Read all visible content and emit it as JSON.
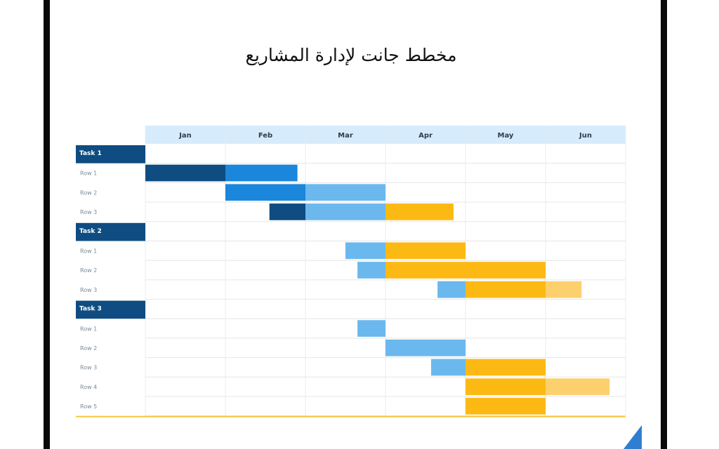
{
  "title": "مخطط جانت لإدارة المشاريع",
  "colors": {
    "header_bg": "#d6ebfb",
    "group_bg": "#0f4c81",
    "dark_blue": "#0f4c81",
    "mid_blue": "#1a86dc",
    "light_blue": "#6bb8ee",
    "gold": "#fdb913",
    "light_gold": "#fdd06e",
    "baseline": "#f5c842"
  },
  "chart_data": {
    "type": "gantt",
    "months": [
      "Jan",
      "Feb",
      "Mar",
      "Apr",
      "May",
      "Jun"
    ],
    "groups": [
      {
        "name": "Task 1",
        "rows": [
          {
            "label": "Row 1",
            "bars": [
              {
                "start": 0.0,
                "end": 1.0,
                "color": "dark_blue"
              },
              {
                "start": 1.0,
                "end": 1.9,
                "color": "mid_blue"
              }
            ]
          },
          {
            "label": "Row 2",
            "bars": [
              {
                "start": 1.0,
                "end": 2.0,
                "color": "mid_blue"
              },
              {
                "start": 2.0,
                "end": 3.0,
                "color": "light_blue"
              }
            ]
          },
          {
            "label": "Row 3",
            "bars": [
              {
                "start": 1.55,
                "end": 2.0,
                "color": "dark_blue"
              },
              {
                "start": 2.0,
                "end": 3.0,
                "color": "light_blue"
              },
              {
                "start": 3.0,
                "end": 3.85,
                "color": "gold"
              }
            ]
          }
        ]
      },
      {
        "name": "Task 2",
        "rows": [
          {
            "label": "Row 1",
            "bars": [
              {
                "start": 2.5,
                "end": 3.0,
                "color": "light_blue"
              },
              {
                "start": 3.0,
                "end": 4.0,
                "color": "gold"
              }
            ]
          },
          {
            "label": "Row 2",
            "bars": [
              {
                "start": 2.65,
                "end": 3.0,
                "color": "light_blue"
              },
              {
                "start": 3.0,
                "end": 5.0,
                "color": "gold"
              }
            ]
          },
          {
            "label": "Row 3",
            "bars": [
              {
                "start": 3.65,
                "end": 4.0,
                "color": "light_blue"
              },
              {
                "start": 4.0,
                "end": 5.0,
                "color": "gold"
              },
              {
                "start": 5.0,
                "end": 5.45,
                "color": "light_gold"
              }
            ]
          }
        ]
      },
      {
        "name": "Task 3",
        "rows": [
          {
            "label": "Row 1",
            "bars": [
              {
                "start": 2.65,
                "end": 3.0,
                "color": "light_blue"
              }
            ]
          },
          {
            "label": "Row 2",
            "bars": [
              {
                "start": 3.0,
                "end": 4.0,
                "color": "light_blue"
              }
            ]
          },
          {
            "label": "Row 3",
            "bars": [
              {
                "start": 3.57,
                "end": 4.0,
                "color": "light_blue"
              },
              {
                "start": 4.0,
                "end": 5.0,
                "color": "gold"
              }
            ]
          },
          {
            "label": "Row 4",
            "bars": [
              {
                "start": 4.0,
                "end": 5.0,
                "color": "gold"
              },
              {
                "start": 5.0,
                "end": 5.8,
                "color": "light_gold"
              }
            ]
          },
          {
            "label": "Row 5",
            "bars": [
              {
                "start": 4.0,
                "end": 5.0,
                "color": "gold"
              }
            ]
          }
        ]
      }
    ],
    "grid": true
  }
}
